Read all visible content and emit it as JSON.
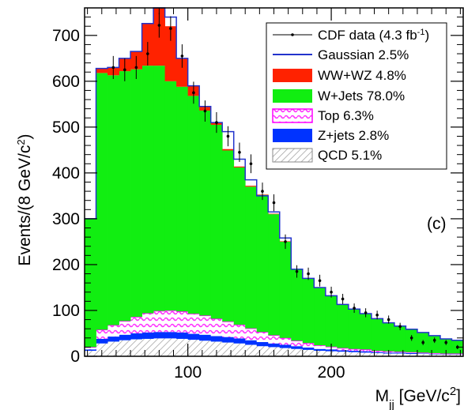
{
  "chart_data": {
    "type": "bar",
    "stacked": true,
    "xlabel": {
      "main": "M",
      "sub": "jj",
      "rest": " [GeV/c",
      "sup": "2",
      "end": "]"
    },
    "ylabel": {
      "main": "Events/(8 GeV/c",
      "sup": "2",
      "end": ")"
    },
    "panel_label": "(c)",
    "xlim": [
      28,
      292
    ],
    "ylim": [
      0,
      760
    ],
    "bin_width": 8,
    "x": [
      28,
      36,
      44,
      52,
      60,
      68,
      76,
      84,
      92,
      100,
      108,
      116,
      124,
      132,
      140,
      148,
      156,
      164,
      172,
      180,
      188,
      196,
      204,
      212,
      220,
      228,
      236,
      244,
      252,
      260,
      268,
      276,
      284
    ],
    "xticks": [
      100,
      200
    ],
    "yticks": [
      0,
      100,
      200,
      300,
      400,
      500,
      600,
      700
    ],
    "grid": false,
    "legend_position": "top-right",
    "colors": {
      "qcd": "#bdbdbd",
      "zjets": "#0033ff",
      "top": "#ff66ff",
      "wjets": "#11ee11",
      "wwwz": "#ff2200",
      "gaussian": "#2233cc",
      "data": "#000000"
    },
    "series": [
      {
        "key": "qcd",
        "name": "QCD 5.1%",
        "values": [
          12,
          28,
          32,
          35,
          37,
          38,
          39,
          39,
          38,
          36,
          34,
          32,
          30,
          28,
          25,
          22,
          20,
          18,
          16,
          14,
          12,
          11,
          10,
          9,
          8,
          7,
          6,
          6,
          5,
          5,
          4,
          4,
          4
        ]
      },
      {
        "key": "zjets",
        "name": "Z+jets 2.8%",
        "values": [
          3,
          10,
          11,
          12,
          13,
          14,
          14,
          14,
          14,
          13,
          13,
          12,
          12,
          11,
          10,
          9,
          8,
          7,
          6,
          5,
          4,
          4,
          3,
          3,
          3,
          2,
          2,
          2,
          2,
          1,
          1,
          1,
          1
        ]
      },
      {
        "key": "top",
        "name": "Top 6.3%",
        "values": [
          5,
          20,
          25,
          30,
          36,
          42,
          46,
          47,
          46,
          44,
          42,
          38,
          34,
          30,
          26,
          22,
          18,
          15,
          12,
          10,
          8,
          6,
          5,
          4,
          4,
          3,
          3,
          2,
          2,
          2,
          2,
          1,
          1
        ]
      },
      {
        "key": "wjets",
        "name": "W+Jets 78.0%",
        "values": [
          280,
          560,
          545,
          545,
          540,
          540,
          535,
          500,
          490,
          475,
          447,
          423,
          373,
          343,
          309,
          299,
          264,
          210,
          156,
          141,
          126,
          111,
          95,
          88,
          78,
          70,
          62,
          56,
          50,
          44,
          38,
          32,
          29
        ]
      },
      {
        "key": "wwwz",
        "name": "WW+WZ 4.8%",
        "values": [
          0,
          10,
          17,
          28,
          39,
          92,
          126,
          120,
          62,
          22,
          9,
          5,
          3,
          2,
          2,
          1,
          1,
          1,
          1,
          0,
          0,
          0,
          0,
          0,
          0,
          0,
          0,
          0,
          0,
          0,
          0,
          0,
          0
        ]
      }
    ],
    "gaussian": {
      "name": "Gaussian  2.5%",
      "values": [
        300,
        628,
        630,
        650,
        665,
        726,
        760,
        740,
        650,
        590,
        545,
        510,
        490,
        430,
        385,
        350,
        315,
        258,
        190,
        170,
        150,
        132,
        113,
        103,
        93,
        82,
        73,
        66,
        59,
        52,
        45,
        38,
        35
      ]
    },
    "data": {
      "name": "CDF data (4.3 fb",
      "name_sup": "-1",
      "name_end": ")",
      "x": [
        48,
        56,
        64,
        72,
        80,
        88,
        96,
        104,
        112,
        120,
        128,
        136,
        144,
        152,
        160,
        168,
        176,
        184,
        192,
        200,
        208,
        216,
        224,
        232,
        240,
        248,
        256,
        264,
        272,
        280,
        288
      ],
      "values": [
        630,
        625,
        630,
        660,
        722,
        715,
        655,
        575,
        535,
        510,
        480,
        445,
        420,
        360,
        335,
        250,
        185,
        180,
        165,
        140,
        125,
        105,
        95,
        90,
        80,
        65,
        40,
        30,
        35,
        30,
        20
      ]
    }
  }
}
